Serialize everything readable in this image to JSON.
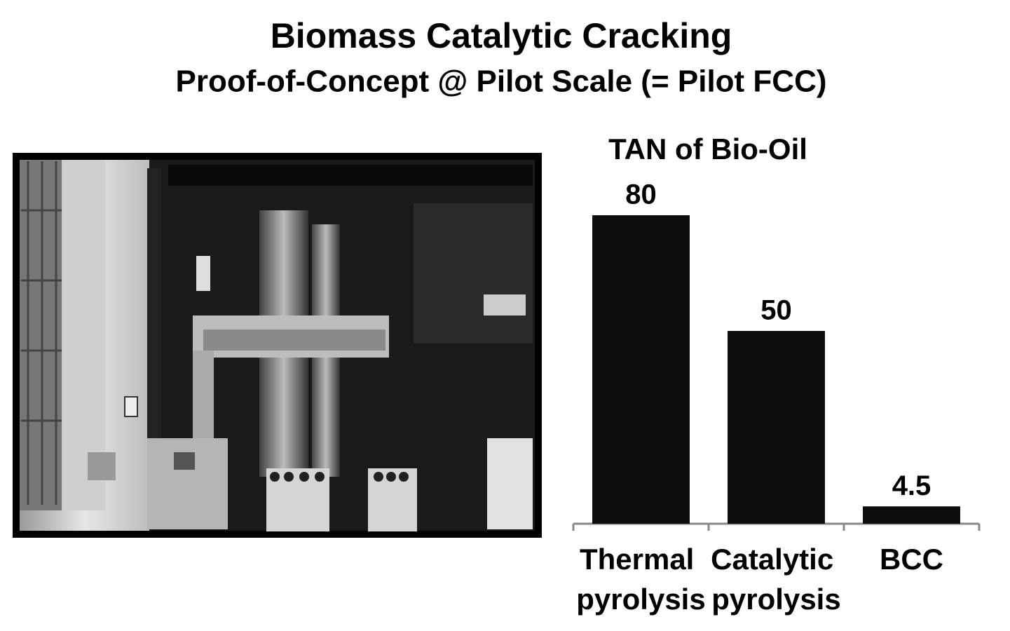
{
  "slide": {
    "title": "Biomass Catalytic Cracking",
    "subtitle": "Proof-of-Concept @ Pilot Scale (= Pilot FCC)"
  },
  "chart_data": {
    "type": "bar",
    "title": "TAN of Bio-Oil",
    "categories": [
      "Thermal pyrolysis",
      "Catalytic pyrolysis",
      "BCC"
    ],
    "values": [
      80,
      50,
      4.5
    ],
    "color": "#0d0d0d"
  }
}
